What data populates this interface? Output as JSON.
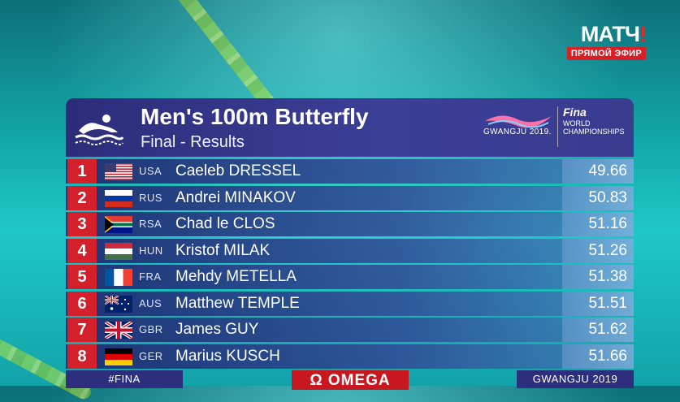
{
  "broadcaster": {
    "brand_main": "МАТЧ",
    "brand_excl": "!",
    "live_label": "ПРЯМОЙ ЭФИР"
  },
  "event": {
    "title": "Men's 100m Butterfly",
    "subtitle": "Final - Results",
    "host_logo_text": "GWANGJU 2019.",
    "org_name": "Fina",
    "org_line1": "WORLD",
    "org_line2": "CHAMPIONSHIPS"
  },
  "results": [
    {
      "rank": "1",
      "nation": "USA",
      "name": "Caeleb DRESSEL",
      "time": "49.66",
      "flag": "usa-flag-icon"
    },
    {
      "rank": "2",
      "nation": "RUS",
      "name": "Andrei MINAKOV",
      "time": "50.83",
      "flag": "russia-flag-icon"
    },
    {
      "rank": "3",
      "nation": "RSA",
      "name": "Chad le CLOS",
      "time": "51.16",
      "flag": "south-africa-flag-icon"
    },
    {
      "rank": "4",
      "nation": "HUN",
      "name": "Kristof MILAK",
      "time": "51.26",
      "flag": "hungary-flag-icon"
    },
    {
      "rank": "5",
      "nation": "FRA",
      "name": "Mehdy METELLA",
      "time": "51.38",
      "flag": "france-flag-icon"
    },
    {
      "rank": "6",
      "nation": "AUS",
      "name": "Matthew TEMPLE",
      "time": "51.51",
      "flag": "australia-flag-icon"
    },
    {
      "rank": "7",
      "nation": "GBR",
      "name": "James GUY",
      "time": "51.62",
      "flag": "uk-flag-icon"
    },
    {
      "rank": "8",
      "nation": "GER",
      "name": "Marius KUSCH",
      "time": "51.66",
      "flag": "germany-flag-icon"
    }
  ],
  "footer": {
    "hashtag": "#FINA",
    "sponsor": "Ω OMEGA",
    "location": "GWANGJU 2019"
  },
  "colors": {
    "rank_red": "#d4202a",
    "header_navy": "#2c2c7a",
    "row_navy": "#1e286e"
  }
}
